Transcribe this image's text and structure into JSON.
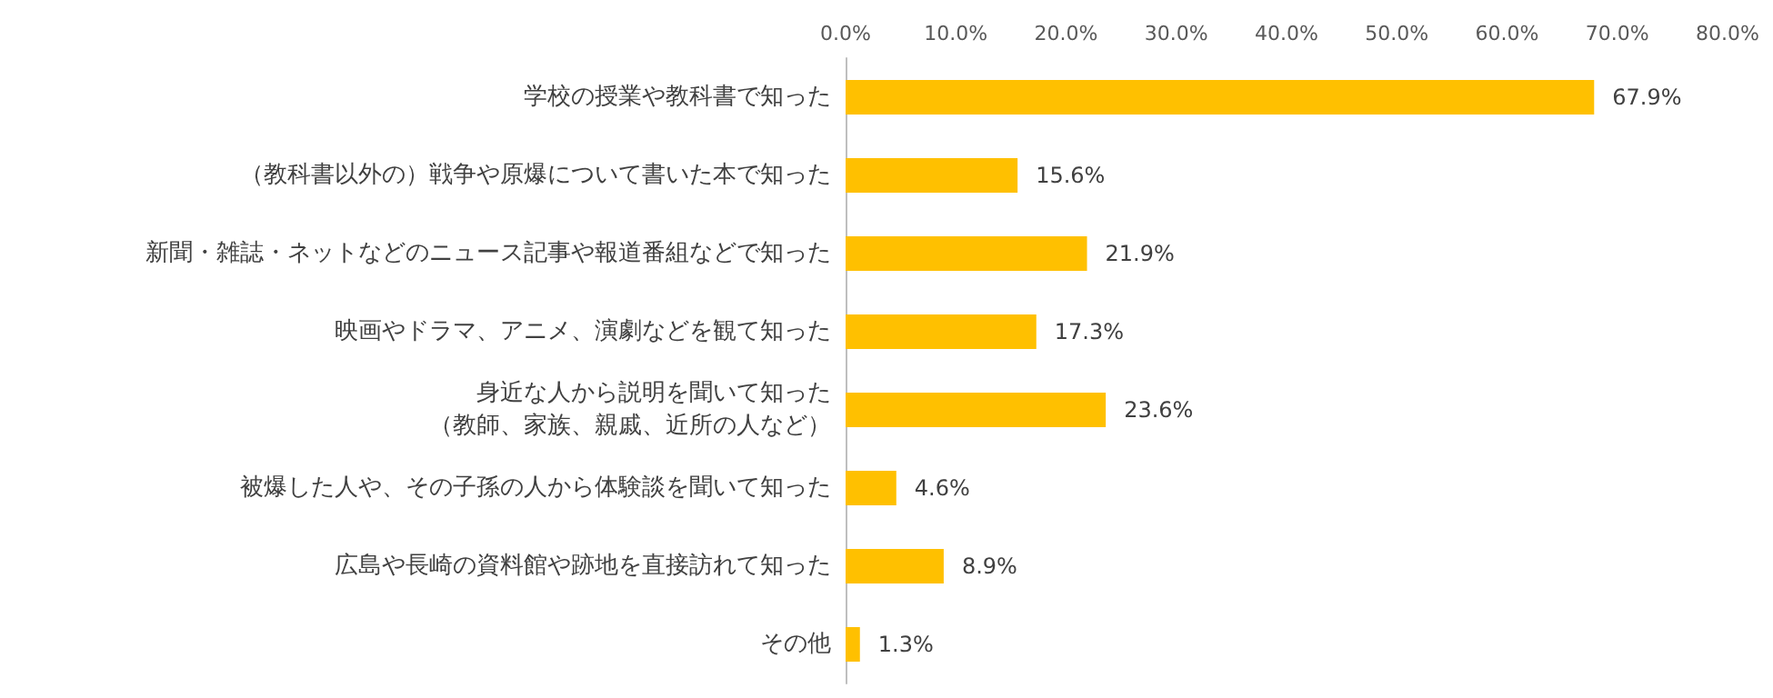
{
  "chart_data": {
    "type": "bar",
    "orientation": "horizontal",
    "categories": [
      "学校の授業や教科書で知った",
      "（教科書以外の）戦争や原爆について書いた本で知った",
      "新聞・雑誌・ネットなどのニュース記事や報道番組などで知った",
      "映画やドラマ、アニメ、演劇などを観て知った",
      "身近な人から説明を聞いて知った（教師、家族、親戚、近所の人など）",
      "被爆した人や、その子孫の人から体験談を聞いて知った",
      "広島や長崎の資料館や跡地を直接訪れて知った",
      "その他"
    ],
    "values": [
      67.9,
      15.6,
      21.9,
      17.3,
      23.6,
      4.6,
      8.9,
      1.3
    ],
    "value_labels": [
      "67.9%",
      "15.6%",
      "21.9%",
      "17.3%",
      "23.6%",
      "4.6%",
      "8.9%",
      "1.3%"
    ],
    "color": "#ffc000",
    "xlim": [
      0,
      80
    ],
    "xticks": [
      {
        "value": 0,
        "label": "0.0%"
      },
      {
        "value": 10,
        "label": "10.0%"
      },
      {
        "value": 20,
        "label": "20.0%"
      },
      {
        "value": 30,
        "label": "30.0%"
      },
      {
        "value": 40,
        "label": "40.0%"
      },
      {
        "value": 50,
        "label": "50.0%"
      },
      {
        "value": 60,
        "label": "60.0%"
      },
      {
        "value": 70,
        "label": "70.0%"
      },
      {
        "value": 80,
        "label": "80.0%"
      }
    ],
    "grid": false
  }
}
